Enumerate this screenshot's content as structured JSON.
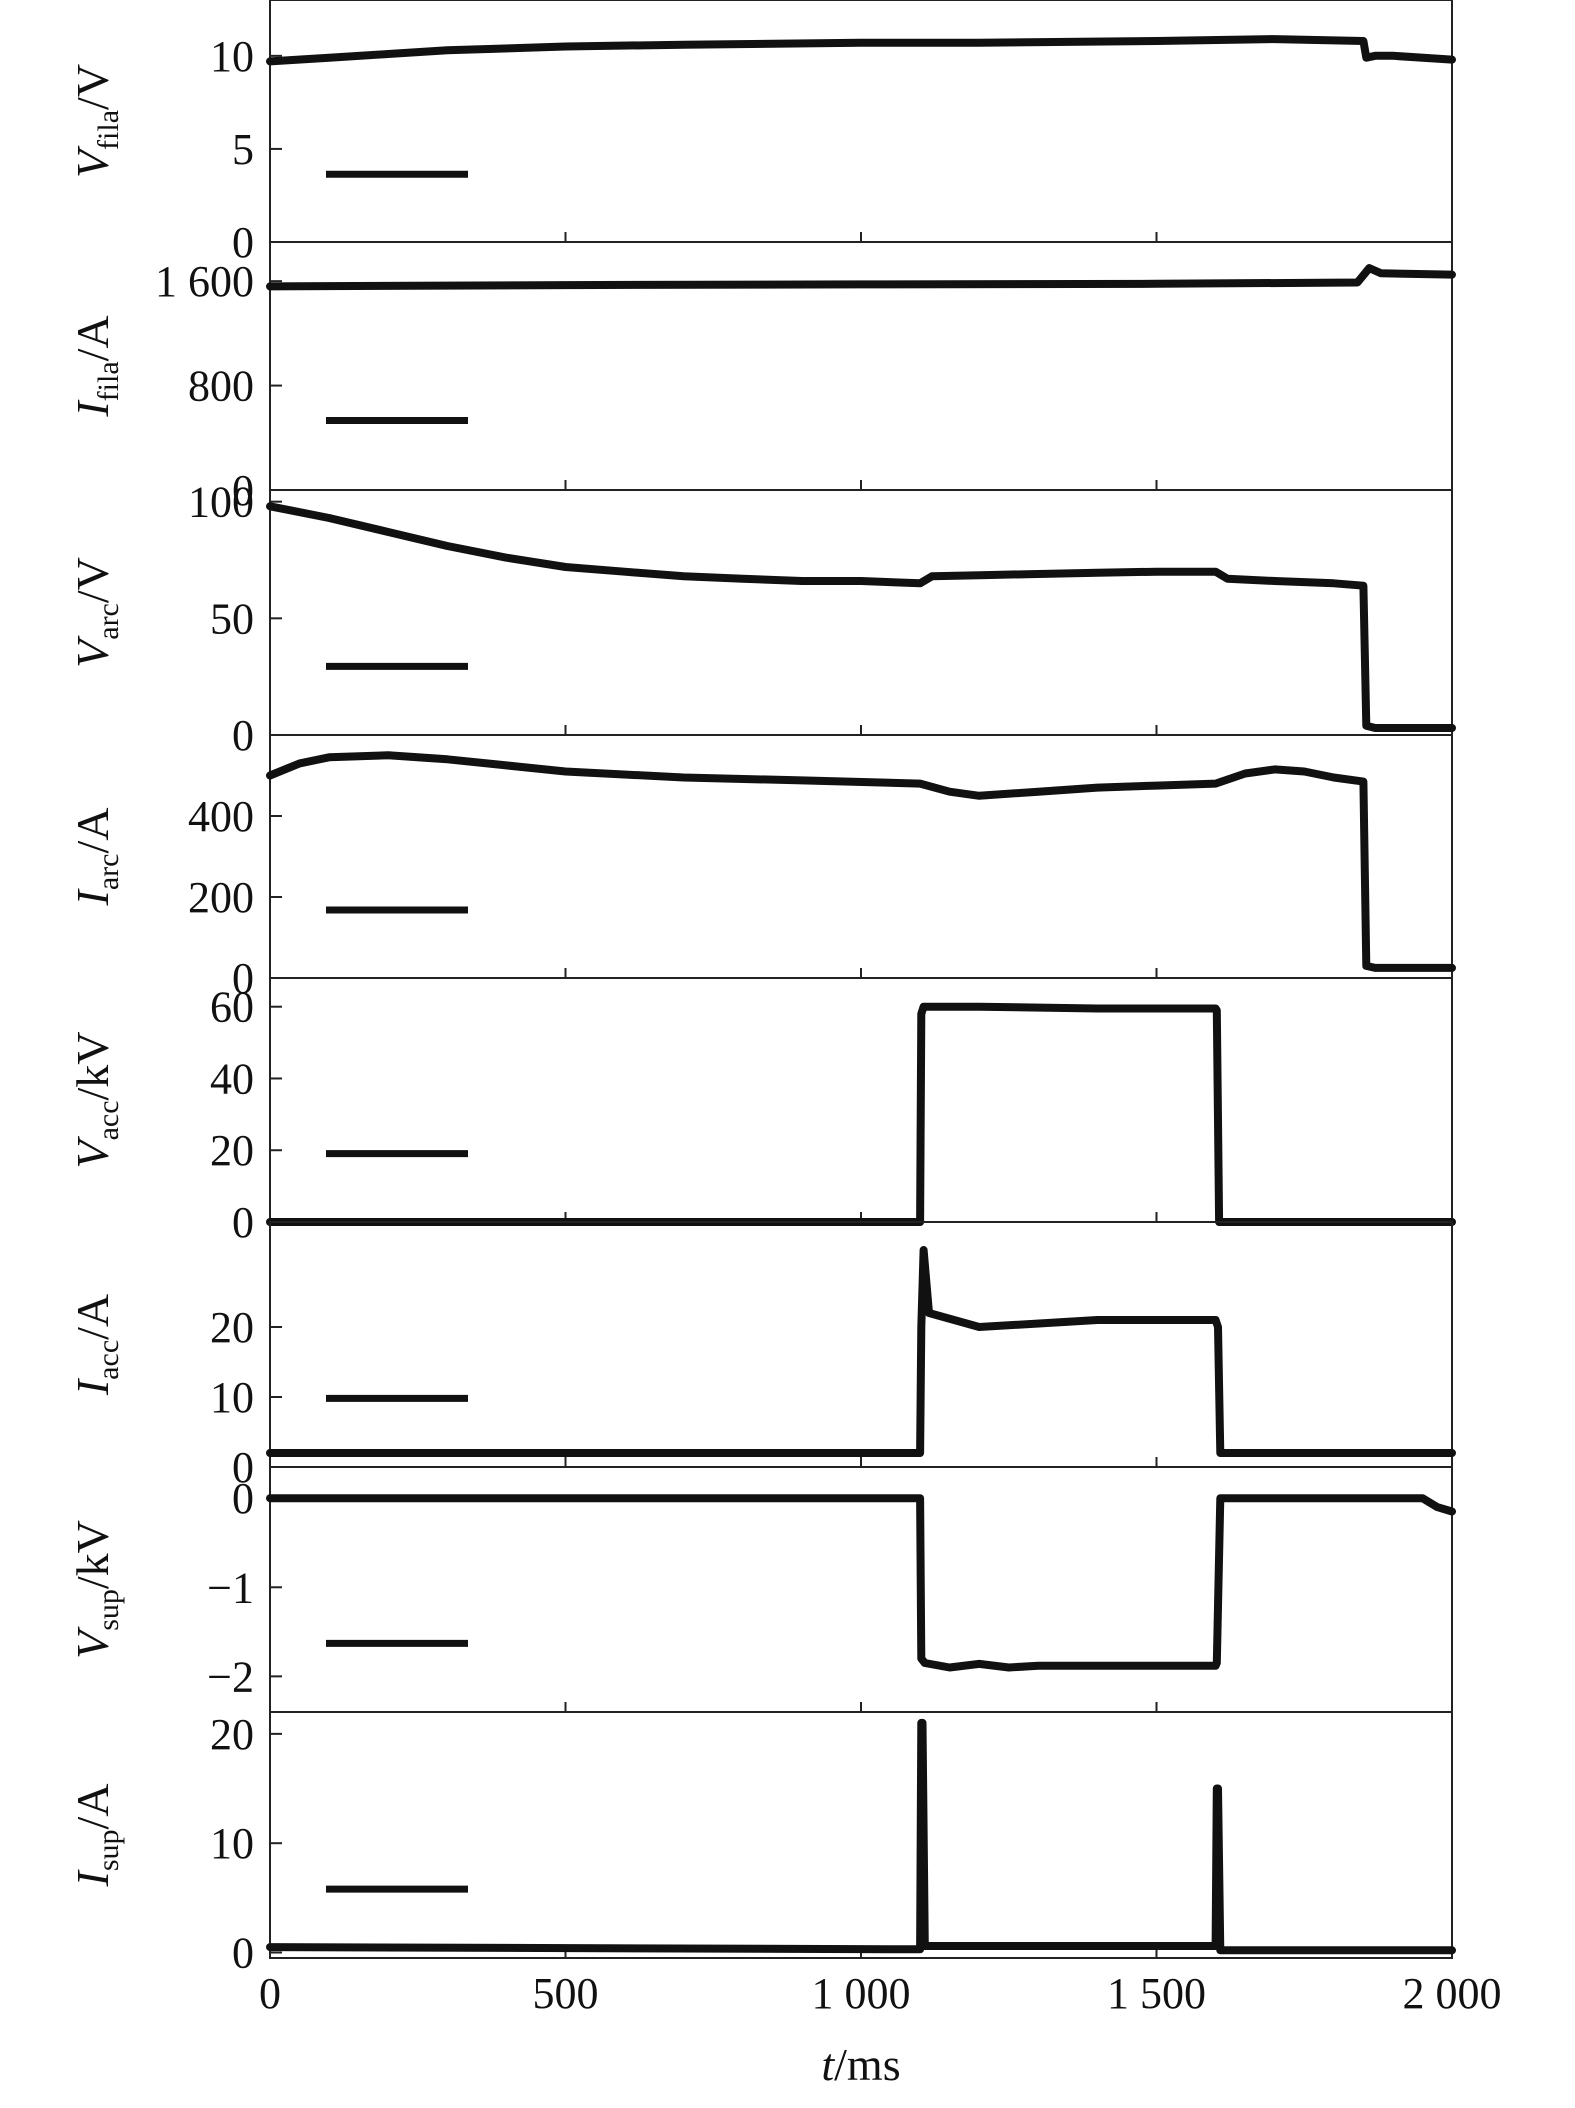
{
  "chart_data": {
    "type": "line",
    "xlabel": "t/ms",
    "xlim": [
      0,
      2000
    ],
    "x_ticks": [
      0,
      500,
      1000,
      1500,
      2000
    ],
    "x_tick_labels": [
      "0",
      "500",
      "1 000",
      "1 500",
      "2 000"
    ],
    "panels": [
      {
        "ylabel": {
          "main": "V",
          "sub": "fila",
          "unit": "/V"
        },
        "ylim": [
          0,
          13
        ],
        "y_ticks": [
          0,
          5,
          10
        ],
        "y_tick_labels": [
          "0",
          "5",
          "10"
        ],
        "legend_swatch": true,
        "x": [
          0,
          100,
          200,
          300,
          500,
          700,
          1000,
          1200,
          1500,
          1700,
          1850,
          1855,
          1870,
          1900,
          2000
        ],
        "y": [
          9.7,
          9.9,
          10.1,
          10.3,
          10.5,
          10.6,
          10.7,
          10.7,
          10.8,
          10.9,
          10.8,
          9.9,
          10.0,
          10.0,
          9.8
        ]
      },
      {
        "ylabel": {
          "main": "I",
          "sub": "fila",
          "unit": "/A"
        },
        "ylim": [
          0,
          1900
        ],
        "y_ticks": [
          0,
          800,
          1600
        ],
        "y_tick_labels": [
          "0",
          "800",
          "1 600"
        ],
        "legend_swatch": true,
        "x": [
          0,
          500,
          1000,
          1500,
          1840,
          1860,
          1880,
          2000
        ],
        "y": [
          1560,
          1570,
          1575,
          1580,
          1590,
          1700,
          1660,
          1650
        ]
      },
      {
        "ylabel": {
          "main": "V",
          "sub": "arc",
          "unit": "/V"
        },
        "ylim": [
          0,
          105
        ],
        "y_ticks": [
          0,
          50,
          100
        ],
        "y_tick_labels": [
          "0",
          "50",
          "100"
        ],
        "legend_swatch": true,
        "x": [
          0,
          100,
          200,
          300,
          400,
          500,
          600,
          700,
          800,
          900,
          1000,
          1100,
          1120,
          1200,
          1300,
          1400,
          1500,
          1600,
          1620,
          1700,
          1800,
          1850,
          1855,
          1870,
          2000
        ],
        "y": [
          98,
          93,
          87,
          81,
          76,
          72,
          70,
          68,
          67,
          66,
          66,
          65,
          68,
          68.5,
          69,
          69.5,
          70,
          70,
          67,
          66,
          65,
          64,
          4,
          3,
          3
        ]
      },
      {
        "ylabel": {
          "main": "I",
          "sub": "arc",
          "unit": "/A"
        },
        "ylim": [
          0,
          600
        ],
        "y_ticks": [
          0,
          200,
          400
        ],
        "y_tick_labels": [
          "0",
          "200",
          "400"
        ],
        "legend_swatch": true,
        "x": [
          0,
          50,
          100,
          200,
          300,
          400,
          500,
          700,
          900,
          1100,
          1150,
          1200,
          1300,
          1400,
          1500,
          1600,
          1650,
          1700,
          1750,
          1800,
          1850,
          1855,
          1870,
          2000
        ],
        "y": [
          500,
          530,
          545,
          550,
          540,
          525,
          510,
          495,
          488,
          480,
          460,
          450,
          460,
          470,
          475,
          480,
          505,
          515,
          510,
          495,
          485,
          30,
          25,
          25
        ]
      },
      {
        "ylabel": {
          "main": "V",
          "sub": "acc",
          "unit": "/kV"
        },
        "ylim": [
          0,
          68
        ],
        "y_ticks": [
          0,
          20,
          40,
          60
        ],
        "y_tick_labels": [
          "0",
          "20",
          "40",
          "60"
        ],
        "legend_swatch": true,
        "x": [
          0,
          1100,
          1102,
          1106,
          1200,
          1400,
          1600,
          1602,
          1606,
          2000
        ],
        "y": [
          0,
          0,
          58,
          60,
          60,
          59.5,
          59.5,
          59,
          0,
          0
        ]
      },
      {
        "ylabel": {
          "main": "I",
          "sub": "acc",
          "unit": "/A"
        },
        "ylim": [
          0,
          35
        ],
        "y_ticks": [
          0,
          10,
          20
        ],
        "y_tick_labels": [
          "0",
          "10",
          "20"
        ],
        "legend_swatch": true,
        "x": [
          0,
          1100,
          1102,
          1106,
          1115,
          1200,
          1400,
          1600,
          1604,
          1608,
          2000
        ],
        "y": [
          2,
          2,
          20,
          31,
          22,
          20,
          21,
          21,
          20,
          2,
          2
        ]
      },
      {
        "ylabel": {
          "main": "V",
          "sub": "sup",
          "unit": "/kV"
        },
        "ylim": [
          -2.4,
          0.35
        ],
        "y_ticks": [
          -2,
          -1,
          0
        ],
        "y_tick_labels": [
          "−2",
          "−1",
          "0"
        ],
        "legend_swatch": true,
        "x": [
          0,
          1100,
          1102,
          1108,
          1150,
          1200,
          1250,
          1300,
          1600,
          1602,
          1608,
          1900,
          1950,
          1975,
          2000
        ],
        "y": [
          0,
          0,
          -1.8,
          -1.85,
          -1.9,
          -1.86,
          -1.9,
          -1.88,
          -1.88,
          -1.85,
          0,
          0,
          0,
          -0.1,
          -0.15
        ]
      },
      {
        "ylabel": {
          "main": "I",
          "sub": "sup",
          "unit": "/A"
        },
        "ylim": [
          -0.5,
          22
        ],
        "y_ticks": [
          0,
          10,
          20
        ],
        "y_tick_labels": [
          "0",
          "10",
          "20"
        ],
        "legend_swatch": true,
        "x": [
          0,
          1100,
          1102,
          1104,
          1108,
          1110,
          1600,
          1602,
          1604,
          1608,
          1610,
          2000
        ],
        "y": [
          0.5,
          0.3,
          21,
          21,
          0.6,
          0.6,
          0.6,
          15,
          15,
          0.2,
          0.2,
          0.2
        ]
      }
    ]
  }
}
